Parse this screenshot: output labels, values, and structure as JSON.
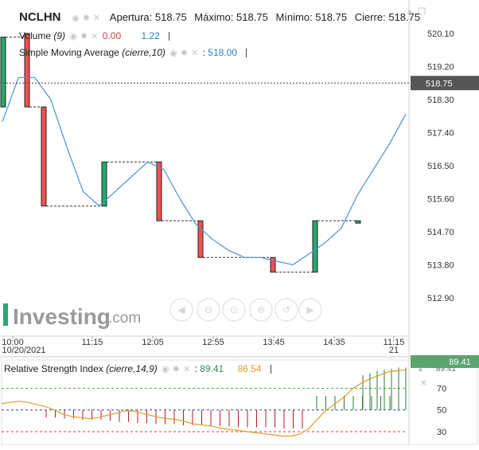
{
  "header": {
    "symbol": "NCLHN",
    "open_label": "Apertura:",
    "open": "518.75",
    "high_label": "Máximo:",
    "high": "518.75",
    "low_label": "Mínimo:",
    "low": "518.75",
    "close_label": "Cierre:",
    "close": "518.75"
  },
  "legend_volume": {
    "name": "Volume",
    "param": "(9)",
    "v1": "0.00",
    "v2": "1.22"
  },
  "legend_sma": {
    "name": "Simple Moving Average",
    "param": "(cierre,10)",
    "value": "518.00"
  },
  "legend_rsi": {
    "name": "Relative Strength Index",
    "param": "(cierre,14,9)",
    "v1": "89.41",
    "v2": "86.54"
  },
  "watermark": "Investing.com",
  "colors": {
    "up": "#26a96c",
    "down": "#ef5350",
    "sma": "#4a90d9",
    "rsi": "#e39a2a",
    "price_tag": "#555555",
    "rsi_tag": "#5aa56e",
    "rsi_up_bar": "#2e7d32",
    "rsi_down_bar": "#b71c1c"
  },
  "chart_data": [
    {
      "type": "candlestick",
      "y_ticks": [
        "520.10",
        "519.20",
        "518.30",
        "517.40",
        "516.50",
        "515.60",
        "514.70",
        "513.80",
        "512.90"
      ],
      "ylim": [
        512.9,
        520.1
      ],
      "current_price": "518.75",
      "x_ticks": [
        "10:00",
        "11:15",
        "12:05",
        "12:55",
        "13:45",
        "14:35",
        "11:15"
      ],
      "x_subticks": [
        "10/20/2021",
        "",
        "",
        "",
        "",
        "",
        "21"
      ],
      "candles": [
        {
          "o": 518.1,
          "c": 520.0,
          "h": 520.0,
          "l": 518.1
        },
        {
          "o": 520.1,
          "c": 518.1,
          "h": 520.1,
          "l": 518.1
        },
        {
          "o": 518.1,
          "c": 515.4,
          "h": 518.1,
          "l": 515.4
        },
        {
          "o": 515.4,
          "c": 516.6,
          "h": 516.6,
          "l": 515.4
        },
        {
          "o": 516.6,
          "c": 515.0,
          "h": 516.6,
          "l": 515.0
        },
        {
          "o": 515.0,
          "c": 514.0,
          "h": 515.0,
          "l": 514.0
        },
        {
          "o": 514.0,
          "c": 513.6,
          "h": 514.0,
          "l": 513.6
        },
        {
          "o": 513.6,
          "c": 515.0,
          "h": 515.0,
          "l": 513.6
        },
        {
          "o": 515.0,
          "c": 515.0,
          "h": 515.0,
          "l": 515.0
        }
      ],
      "sma": [
        517.7,
        518.9,
        518.9,
        518.3,
        517.0,
        515.8,
        515.4,
        515.8,
        516.2,
        516.6,
        516.4,
        515.6,
        514.9,
        514.5,
        514.2,
        514.0,
        514.0,
        513.9,
        513.8,
        514.1,
        514.4,
        514.8,
        515.7,
        516.4,
        517.1,
        517.9
      ]
    },
    {
      "type": "rsi",
      "y_ticks": [
        "89.41",
        "70",
        "50",
        "30"
      ],
      "levels": [
        70,
        50,
        30
      ],
      "ylim": [
        22,
        93
      ],
      "rsi_bars": [
        82,
        84,
        86,
        87,
        88,
        89,
        89
      ],
      "rsi_down_bars": [
        43,
        43,
        42,
        42,
        41,
        41,
        41,
        40,
        39,
        39,
        38,
        38,
        37,
        37,
        37,
        36,
        36,
        36,
        35,
        35,
        35,
        34,
        34,
        34,
        34,
        34,
        33,
        33,
        33
      ],
      "rsi_up_bars": [
        63,
        63,
        63,
        63,
        63,
        63,
        63,
        63,
        63
      ],
      "signal": [
        56,
        57,
        58,
        57,
        55,
        53,
        50,
        46,
        44,
        43,
        42,
        43,
        45,
        47,
        49,
        49,
        47,
        45,
        43,
        42,
        41,
        39,
        37,
        36,
        35,
        33,
        32,
        31,
        30,
        29,
        28,
        27,
        26,
        26,
        28,
        33,
        42,
        50,
        56,
        62,
        70,
        75,
        79,
        82,
        85,
        86,
        87
      ]
    }
  ]
}
